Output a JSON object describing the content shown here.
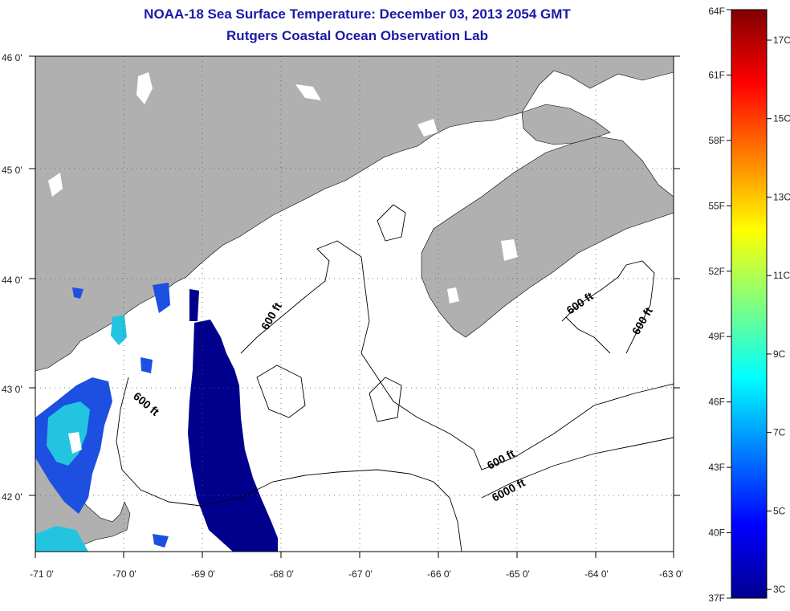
{
  "title": "NOAA-18 Sea Surface Temperature:  December 03, 2013 2054 GMT",
  "subtitle": "Rutgers Coastal Ocean Observation Lab",
  "map": {
    "lon_labels": [
      "-71 0'",
      "-70 0'",
      "-69 0'",
      "-68 0'",
      "-67 0'",
      "-66 0'",
      "-65 0'",
      "-64 0'",
      "-63 0'"
    ],
    "lat_labels": [
      "46 0'",
      "45 0'",
      "44 0'",
      "43 0'",
      "42 0'"
    ],
    "contour_labels": [
      "600 ft",
      "600 ft",
      "600 ft",
      "600 ft",
      "600 ft",
      "6000 ft"
    ],
    "colors": {
      "land": "#b0b0b0",
      "water": "#ffffff",
      "cold": "#00008c",
      "cool": "#1d4fe0",
      "mid": "#22c4e0"
    }
  },
  "colorbar": {
    "fahrenheit": [
      "64F",
      "61F",
      "58F",
      "55F",
      "52F",
      "49F",
      "46F",
      "43F",
      "40F",
      "37F"
    ],
    "celsius": [
      "17C",
      "15C",
      "13C",
      "11C",
      "9C",
      "7C",
      "5C",
      "3C"
    ],
    "range_f": [
      37,
      64
    ]
  }
}
